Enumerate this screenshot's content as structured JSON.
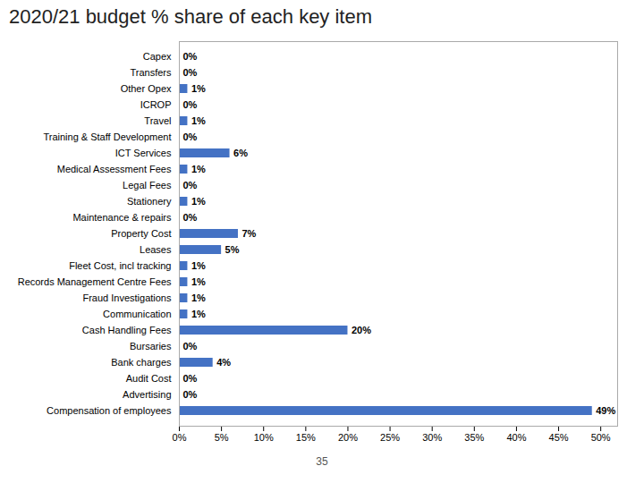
{
  "chart_data": {
    "type": "bar",
    "orientation": "horizontal",
    "title": "2020/21 budget % share of each key item",
    "categories": [
      "Compensation of employees",
      "Advertising",
      "Audit Cost",
      "Bank charges",
      "Bursaries",
      "Cash Handling Fees",
      "Communication",
      "Fraud Investigations",
      "Records Management Centre Fees",
      "Fleet Cost, incl tracking",
      "Leases",
      "Property Cost",
      "Maintenance & repairs",
      "Stationery",
      "Legal Fees",
      "Medical Assessment Fees",
      "ICT Services",
      "Training & Staff Development",
      "Travel",
      "ICROP",
      "Other Opex",
      "Transfers",
      "Capex"
    ],
    "values": [
      49,
      0,
      0,
      4,
      0,
      20,
      1,
      1,
      1,
      1,
      5,
      7,
      0,
      1,
      0,
      1,
      6,
      0,
      1,
      0,
      1,
      0,
      0
    ],
    "value_labels": [
      "49%",
      "0%",
      "0%",
      "4%",
      "0%",
      "20%",
      "1%",
      "1%",
      "1%",
      "1%",
      "5%",
      "7%",
      "0%",
      "1%",
      "0%",
      "1%",
      "6%",
      "0%",
      "1%",
      "0%",
      "1%",
      "0%",
      "0%"
    ],
    "data_labels": true,
    "color": "#4472C4",
    "xlim": [
      0,
      52
    ],
    "xticks": [
      {
        "value": 0,
        "label": "0%"
      },
      {
        "value": 5,
        "label": "5%"
      },
      {
        "value": 10,
        "label": "10%"
      },
      {
        "value": 15,
        "label": "15%"
      },
      {
        "value": 20,
        "label": "20%"
      },
      {
        "value": 25,
        "label": "25%"
      },
      {
        "value": 30,
        "label": "30%"
      },
      {
        "value": 35,
        "label": "35%"
      },
      {
        "value": 40,
        "label": "40%"
      },
      {
        "value": 45,
        "label": "45%"
      },
      {
        "value": 50,
        "label": "50%"
      }
    ],
    "grid": false,
    "annotations": [
      "35"
    ]
  }
}
